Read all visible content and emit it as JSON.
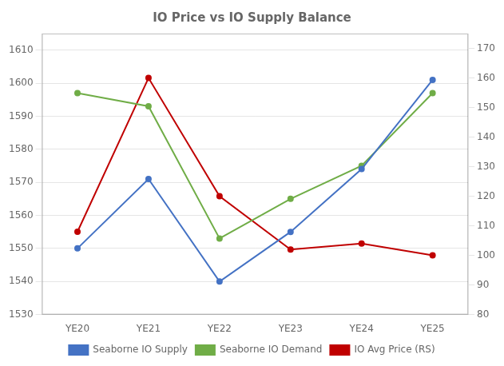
{
  "chart_data": {
    "type": "line",
    "title": "IO Price vs IO Supply Balance",
    "categories": [
      "YE20",
      "YE21",
      "YE22",
      "YE23",
      "YE24",
      "YE25"
    ],
    "series": [
      {
        "name": "Seaborne IO Supply",
        "color": "#4472C4",
        "marker": "circle",
        "values": [
          1550,
          1571,
          1540,
          1555,
          1574,
          1601
        ]
      },
      {
        "name": "Seaborne IO Demand",
        "color": "#70AD47",
        "marker": "circle",
        "values": [
          1597,
          1593,
          1553,
          1565,
          1575,
          1597
        ]
      },
      {
        "name": "IO Avg Price (RS)",
        "color": "#C00000",
        "marker": "circle",
        "axis": "y2",
        "values": [
          108,
          160,
          120,
          102,
          104,
          100
        ]
      }
    ],
    "ylim": [
      1530,
      1615
    ],
    "yticks": [
      1530,
      1540,
      1550,
      1560,
      1570,
      1580,
      1590,
      1600,
      1610
    ],
    "y2lim": [
      80,
      175
    ],
    "y2ticks": [
      80,
      90,
      100,
      110,
      120,
      130,
      140,
      150,
      160,
      170
    ],
    "grid": true,
    "legend": "bottom"
  }
}
